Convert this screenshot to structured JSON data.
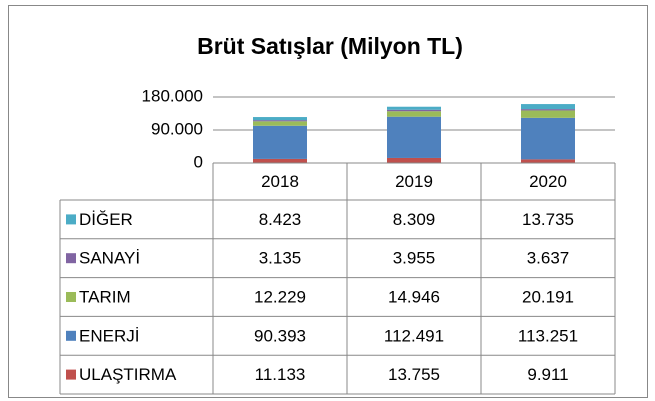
{
  "chart_data": {
    "type": "bar",
    "stacked": true,
    "title": "Brüt Satışlar (Milyon TL)",
    "categories": [
      "2018",
      "2019",
      "2020"
    ],
    "series": [
      {
        "name": "ULAŞTIRMA",
        "color": "#c0504d",
        "values": [
          11133,
          13755,
          9911
        ],
        "value_labels": [
          "11.133",
          "13.755",
          "9.911"
        ]
      },
      {
        "name": "ENERJİ",
        "color": "#4f81bd",
        "values": [
          90393,
          112491,
          113251
        ],
        "value_labels": [
          "90.393",
          "112.491",
          "113.251"
        ]
      },
      {
        "name": "TARIM",
        "color": "#9bbb59",
        "values": [
          12229,
          14946,
          20191
        ],
        "value_labels": [
          "12.229",
          "14.946",
          "20.191"
        ]
      },
      {
        "name": "SANAYİ",
        "color": "#8064a2",
        "values": [
          3135,
          3955,
          3637
        ],
        "value_labels": [
          "3.135",
          "3.955",
          "3.637"
        ]
      },
      {
        "name": "DİĞER",
        "color": "#4bacc6",
        "values": [
          8423,
          8309,
          13735
        ],
        "value_labels": [
          "8.423",
          "8.309",
          "13.735"
        ]
      }
    ],
    "ylim": [
      0,
      180000
    ],
    "yticks": [
      0,
      {
        "value": 90000,
        "label": "90.000"
      },
      {
        "value": 180000,
        "label": "180.000"
      }
    ],
    "grid": true
  }
}
